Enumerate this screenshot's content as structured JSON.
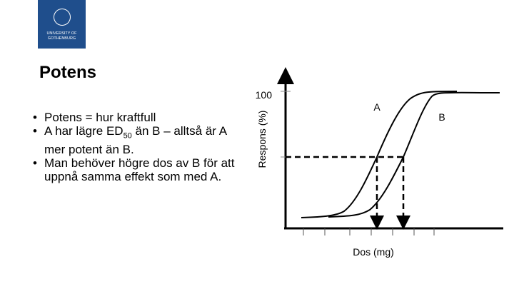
{
  "logo": {
    "line1": "UNIVERSITY OF",
    "line2": "GOTHENBURG"
  },
  "title": "Potens",
  "bullets": [
    {
      "parts": [
        "Potens = hur kraftfull"
      ]
    },
    {
      "parts": [
        "A har lägre ED",
        "50",
        " än B – alltså är A mer potent än B."
      ]
    },
    {
      "parts": [
        "Man behöver högre dos av B för att uppnå samma effekt som med A."
      ]
    }
  ],
  "diagram": {
    "y_axis_label": "Respons (%)",
    "y_tick": "100",
    "x_axis_label": "Dos (mg)",
    "curve_a": "A",
    "curve_b": "B"
  }
}
